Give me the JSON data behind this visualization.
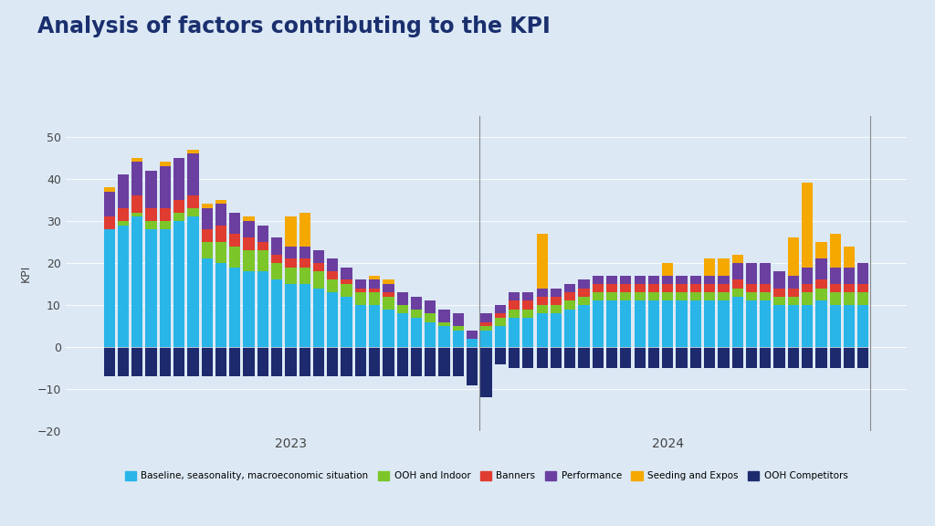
{
  "title": "Analysis of factors contributing to the KPI",
  "ylabel": "KPI",
  "background_color": "#dce9f5",
  "ylim": [
    -20,
    55
  ],
  "yticks": [
    -20,
    -10,
    0,
    10,
    20,
    30,
    40,
    50
  ],
  "title_color": "#1a2f6e",
  "series_colors": {
    "Baseline, seasonality, macroeconomic situation": "#29b5e8",
    "OOH and Indoor": "#7cc629",
    "Banners": "#e03c31",
    "Performance": "#6b3fa0",
    "Seeding and Expos": "#f5a800",
    "OOH Competitors": "#1e2a6e"
  },
  "data": {
    "Baseline, seasonality, macroeconomic situation": [
      28,
      29,
      31,
      28,
      28,
      30,
      31,
      21,
      20,
      19,
      18,
      18,
      16,
      15,
      15,
      14,
      13,
      12,
      10,
      10,
      9,
      8,
      7,
      6,
      5,
      4,
      2,
      4,
      5,
      7,
      7,
      8,
      8,
      9,
      10,
      11,
      11,
      11,
      11,
      11,
      11,
      11,
      11,
      11,
      11,
      12,
      11,
      11,
      10,
      10,
      10,
      11,
      10,
      10,
      10
    ],
    "OOH and Indoor": [
      0,
      1,
      1,
      2,
      2,
      2,
      2,
      4,
      5,
      5,
      5,
      5,
      4,
      4,
      4,
      4,
      3,
      3,
      3,
      3,
      3,
      2,
      2,
      2,
      1,
      1,
      0,
      1,
      2,
      2,
      2,
      2,
      2,
      2,
      2,
      2,
      2,
      2,
      2,
      2,
      2,
      2,
      2,
      2,
      2,
      2,
      2,
      2,
      2,
      2,
      3,
      3,
      3,
      3,
      3
    ],
    "Banners": [
      3,
      3,
      4,
      3,
      3,
      3,
      3,
      3,
      4,
      3,
      3,
      2,
      2,
      2,
      2,
      2,
      2,
      1,
      1,
      1,
      1,
      0,
      0,
      0,
      0,
      0,
      0,
      1,
      1,
      2,
      2,
      2,
      2,
      2,
      2,
      2,
      2,
      2,
      2,
      2,
      2,
      2,
      2,
      2,
      2,
      2,
      2,
      2,
      2,
      2,
      2,
      2,
      2,
      2,
      2
    ],
    "Performance": [
      6,
      8,
      8,
      9,
      10,
      10,
      10,
      5,
      5,
      5,
      4,
      4,
      4,
      3,
      3,
      3,
      3,
      3,
      2,
      2,
      2,
      3,
      3,
      3,
      3,
      3,
      2,
      2,
      2,
      2,
      2,
      2,
      2,
      2,
      2,
      2,
      2,
      2,
      2,
      2,
      2,
      2,
      2,
      2,
      2,
      4,
      5,
      5,
      4,
      3,
      4,
      5,
      4,
      4,
      5
    ],
    "Seeding and Expos": [
      1,
      0,
      1,
      0,
      1,
      0,
      1,
      1,
      1,
      0,
      1,
      0,
      0,
      7,
      8,
      0,
      0,
      0,
      0,
      1,
      1,
      0,
      0,
      0,
      0,
      0,
      0,
      0,
      0,
      0,
      0,
      13,
      0,
      0,
      0,
      0,
      0,
      0,
      0,
      0,
      3,
      0,
      0,
      4,
      4,
      2,
      0,
      0,
      0,
      9,
      20,
      4,
      8,
      5,
      0
    ],
    "OOH Competitors": [
      -7,
      -7,
      -7,
      -7,
      -7,
      -7,
      -7,
      -7,
      -7,
      -7,
      -7,
      -7,
      -7,
      -7,
      -7,
      -7,
      -7,
      -7,
      -7,
      -7,
      -7,
      -7,
      -7,
      -7,
      -7,
      -7,
      -9,
      -12,
      -4,
      -5,
      -5,
      -5,
      -5,
      -5,
      -5,
      -5,
      -5,
      -5,
      -5,
      -5,
      -5,
      -5,
      -5,
      -5,
      -5,
      -5,
      -5,
      -5,
      -5,
      -5,
      -5,
      -5,
      -5,
      -5,
      -5
    ]
  },
  "year_labels": [
    {
      "label": "2023",
      "bar_index": 13
    },
    {
      "label": "2024",
      "bar_index": 40
    }
  ],
  "vline_indices": [
    26.5,
    54.5
  ]
}
